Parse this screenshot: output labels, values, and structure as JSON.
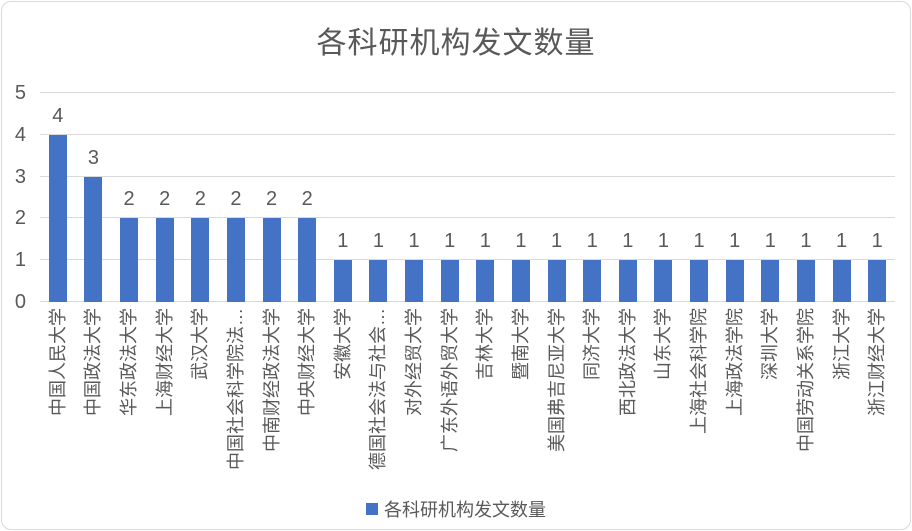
{
  "chart_data": {
    "type": "bar",
    "title": "各科研机构发文数量",
    "series_name": "各科研机构发文数量",
    "categories": [
      "中国人民大学",
      "中国政法大学",
      "华东政法大学",
      "上海财经大学",
      "武汉大学",
      "中国社会科学院法…",
      "中南财经政法大学",
      "中央财经大学",
      "安徽大学",
      "德国社会法与社会…",
      "对外经贸大学",
      "广东外语外贸大学",
      "吉林大学",
      "暨南大学",
      "美国弗吉尼亚大学",
      "同济大学",
      "西北政法大学",
      "山东大学",
      "上海社会科学院",
      "上海政法学院",
      "深圳大学",
      "中国劳动关系学院",
      "浙江大学",
      "浙江财经大学"
    ],
    "values": [
      4,
      3,
      2,
      2,
      2,
      2,
      2,
      2,
      1,
      1,
      1,
      1,
      1,
      1,
      1,
      1,
      1,
      1,
      1,
      1,
      1,
      1,
      1,
      1
    ],
    "ylim": [
      0,
      5
    ],
    "yticks": [
      0,
      1,
      2,
      3,
      4,
      5
    ],
    "grid": true,
    "data_labels": true,
    "legend_position": "bottom",
    "bar_color": "#4472C4",
    "label_color": "#595959",
    "gridline_color": "#D9D9D9"
  }
}
